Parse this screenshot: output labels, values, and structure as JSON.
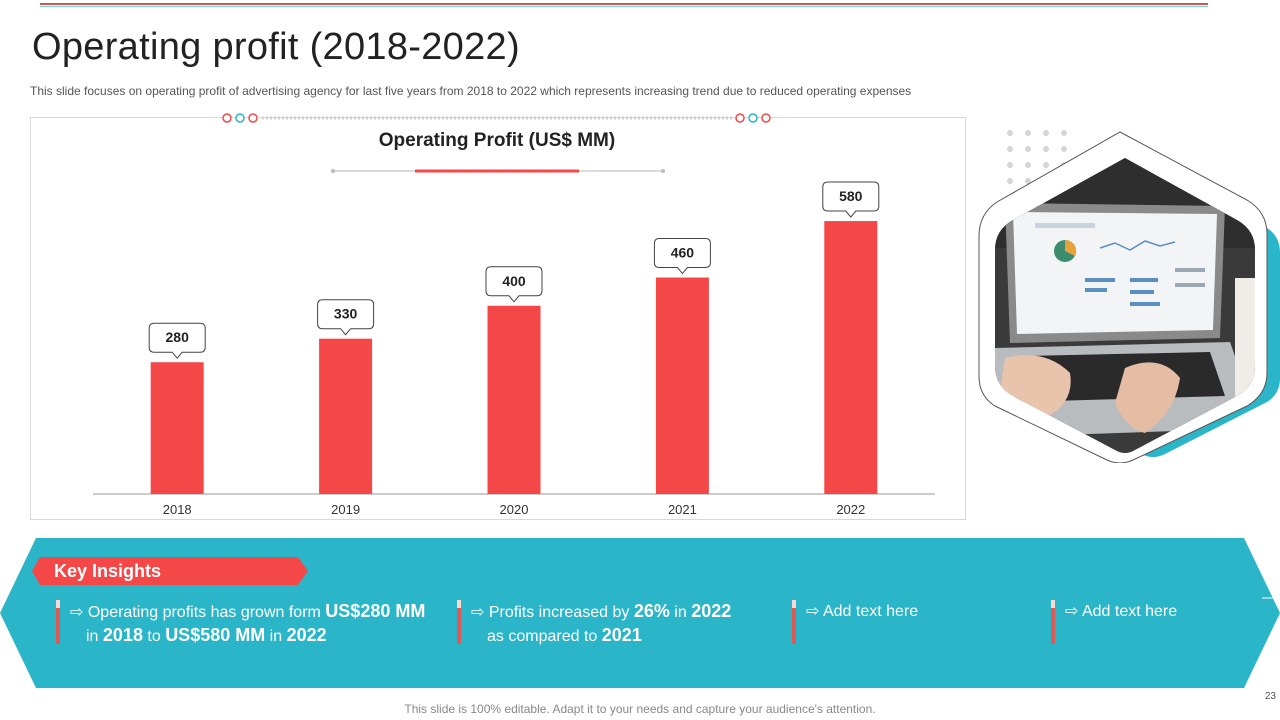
{
  "header": {
    "title": "Operating profit (2018-2022)",
    "subtitle": "This slide focuses on operating profit of advertising agency for last five years from 2018 to 2022 which represents increasing trend due to reduced operating expenses"
  },
  "chart_data": {
    "type": "bar",
    "title": "Operating Profit (US$ MM)",
    "categories": [
      "2018",
      "2019",
      "2020",
      "2021",
      "2022"
    ],
    "values": [
      280,
      330,
      400,
      460,
      580
    ],
    "data_labels": [
      "280",
      "330",
      "400",
      "460",
      "580"
    ],
    "ylim": [
      0,
      680
    ],
    "xlabel": "",
    "ylabel": "",
    "grid": false,
    "bar_color": "#f44848"
  },
  "insights": {
    "heading": "Key Insights",
    "items": [
      {
        "arrow": "⇨",
        "p1": "Operating profits has grown form ",
        "b1": "US$280 MM",
        "p2": " in ",
        "b2": "2018",
        "p3": " to ",
        "b3": "US$580 MM",
        "p4": " in ",
        "b4": "2022"
      },
      {
        "arrow": "⇨",
        "p1": "Profits increased by ",
        "b1": "26%",
        "p2": " in ",
        "b2": "2022",
        "p3": " as compared to ",
        "b3": "2021"
      },
      {
        "arrow": "⇨",
        "text": "Add text here"
      },
      {
        "arrow": "⇨",
        "text": "Add text here"
      }
    ]
  },
  "footer": {
    "note": "This slide is 100% editable. Adapt it to your needs and capture your audience's attention.",
    "page": "23"
  },
  "colors": {
    "accent_red": "#f44848",
    "accent_teal": "#2bb5c9"
  }
}
